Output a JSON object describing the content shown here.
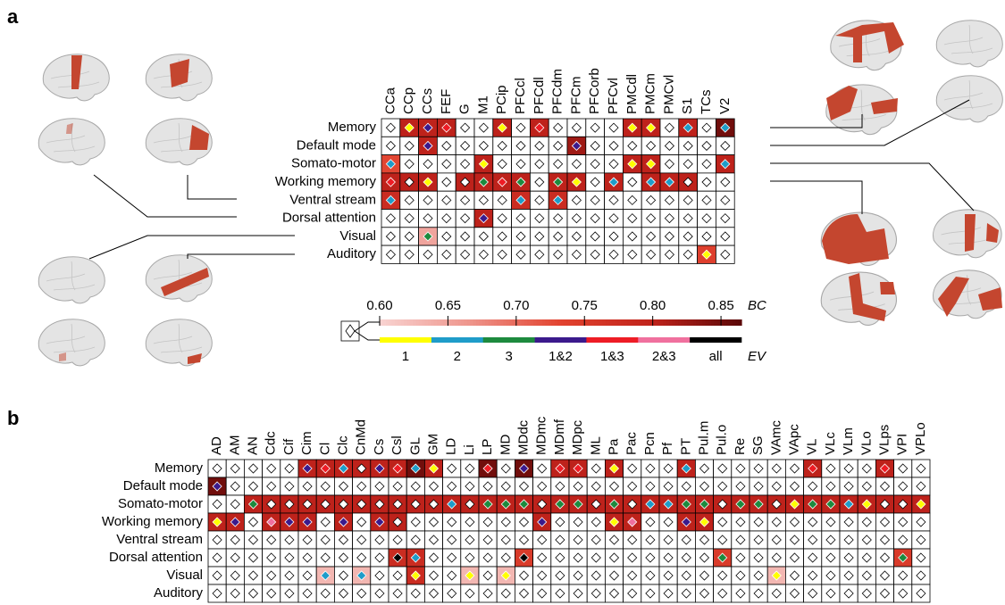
{
  "chart_data": [
    {
      "type": "heatmap",
      "label": "a",
      "x": [
        "CCa",
        "CCp",
        "CCs",
        "FEF",
        "G",
        "M1",
        "PCip",
        "PFCcl",
        "PFCdl",
        "PFCdm",
        "PFCm",
        "PFCorb",
        "PFCvl",
        "PMCdl",
        "PMCm",
        "PMCvl",
        "S1",
        "TCs",
        "V2"
      ],
      "y": [
        "Memory",
        "Default mode",
        "Somato-motor",
        "Working memory",
        "Ventral stream",
        "Dorsal attention",
        "Visual",
        "Auditory"
      ],
      "values": [
        [
          null,
          0.8,
          0.8,
          0.8,
          null,
          null,
          0.8,
          null,
          0.8,
          null,
          null,
          null,
          null,
          0.8,
          0.8,
          null,
          0.8,
          null,
          0.85
        ],
        [
          null,
          null,
          0.8,
          null,
          null,
          null,
          null,
          null,
          null,
          null,
          0.82,
          null,
          null,
          null,
          null,
          null,
          null,
          null,
          null
        ],
        [
          0.73,
          null,
          null,
          null,
          null,
          0.8,
          null,
          null,
          null,
          null,
          null,
          null,
          null,
          0.8,
          0.8,
          null,
          null,
          null,
          0.8
        ],
        [
          0.8,
          0.8,
          0.8,
          null,
          0.8,
          0.8,
          0.8,
          0.8,
          null,
          0.8,
          0.8,
          null,
          0.8,
          null,
          0.8,
          0.8,
          0.8,
          null,
          null
        ],
        [
          0.78,
          null,
          null,
          null,
          null,
          null,
          null,
          0.78,
          null,
          0.78,
          null,
          null,
          null,
          null,
          null,
          null,
          null,
          null,
          null
        ],
        [
          null,
          null,
          null,
          null,
          null,
          0.8,
          null,
          null,
          null,
          null,
          null,
          null,
          null,
          null,
          null,
          null,
          null,
          null,
          null
        ],
        [
          null,
          null,
          0.65,
          null,
          null,
          null,
          null,
          null,
          null,
          null,
          null,
          null,
          null,
          null,
          null,
          null,
          null,
          null,
          null
        ],
        [
          null,
          null,
          null,
          null,
          null,
          null,
          null,
          null,
          null,
          null,
          null,
          null,
          null,
          null,
          null,
          null,
          null,
          0.74,
          null
        ]
      ],
      "ev": [
        [
          null,
          0,
          3,
          4,
          null,
          null,
          0,
          null,
          4,
          null,
          null,
          null,
          null,
          0,
          0,
          null,
          1,
          null,
          1
        ],
        [
          null,
          null,
          3,
          null,
          null,
          null,
          null,
          null,
          null,
          null,
          3,
          null,
          null,
          null,
          null,
          null,
          null,
          null,
          null
        ],
        [
          1,
          null,
          null,
          null,
          null,
          0,
          null,
          null,
          null,
          null,
          null,
          null,
          null,
          0,
          0,
          null,
          null,
          null,
          1
        ],
        [
          4,
          null,
          0,
          null,
          null,
          2,
          4,
          2,
          null,
          2,
          0,
          null,
          1,
          null,
          1,
          1,
          null,
          null,
          null
        ],
        [
          1,
          null,
          null,
          null,
          null,
          null,
          null,
          1,
          null,
          1,
          null,
          null,
          null,
          null,
          null,
          null,
          null,
          null,
          null
        ],
        [
          null,
          null,
          null,
          null,
          null,
          3,
          null,
          null,
          null,
          null,
          null,
          null,
          null,
          null,
          null,
          null,
          null,
          null,
          null
        ],
        [
          null,
          null,
          2,
          null,
          null,
          null,
          null,
          null,
          null,
          null,
          null,
          null,
          null,
          null,
          null,
          null,
          null,
          null,
          null
        ],
        [
          null,
          null,
          null,
          null,
          null,
          null,
          null,
          null,
          null,
          null,
          null,
          null,
          null,
          null,
          null,
          null,
          null,
          0,
          null
        ]
      ],
      "colormap": [
        "#f8d3d1",
        "#ee958c",
        "#e2432f",
        "#c0231b",
        "#5a0808"
      ],
      "bclim": [
        0.6,
        0.865
      ],
      "bc_label": "BC",
      "bc_ticks": [
        {
          "value": 0.6,
          "label": "0.60"
        },
        0.65,
        {
          "value": 0.7,
          "label": "0.70"
        },
        0.75,
        {
          "value": 0.8,
          "label": "0.80"
        },
        0.85
      ],
      "ev_label": "EV",
      "ev_categories": [
        {
          "label": "1",
          "color": "#ffff00"
        },
        {
          "label": "2",
          "color": "#1f9cc9"
        },
        {
          "label": "3",
          "color": "#1d8a3e"
        },
        {
          "label": "1&2",
          "color": "#3b1a8c"
        },
        {
          "label": "1&3",
          "color": "#ee1c25"
        },
        {
          "label": "2&3",
          "color": "#f0709e"
        },
        {
          "label": "all",
          "color": "#000000"
        }
      ]
    },
    {
      "type": "heatmap",
      "label": "b",
      "x": [
        "AD",
        "AM",
        "AN",
        "Cdc",
        "Cif",
        "Cim",
        "Cl",
        "Clc",
        "CnMd",
        "Cs",
        "Csl",
        "GL",
        "GM",
        "LD",
        "Li",
        "LP",
        "MD",
        "MDdc",
        "MDmc",
        "MDmf",
        "MDpc",
        "ML",
        "Pa",
        "Pac",
        "Pcn",
        "Pf",
        "PT",
        "Pul.m",
        "Pul.o",
        "Re",
        "SG",
        "VAmc",
        "VApc",
        "VL",
        "VLc",
        "VLm",
        "VLo",
        "VLps",
        "VPI",
        "VPLo"
      ],
      "y": [
        "Memory",
        "Default mode",
        "Somato-motor",
        "Working memory",
        "Ventral stream",
        "Dorsal attention",
        "Visual",
        "Auditory"
      ],
      "values": [
        [
          null,
          null,
          null,
          null,
          null,
          0.8,
          0.8,
          0.8,
          0.8,
          0.8,
          0.8,
          0.85,
          0.8,
          null,
          null,
          0.85,
          null,
          0.85,
          null,
          0.8,
          0.8,
          null,
          0.8,
          null,
          null,
          null,
          0.8,
          null,
          null,
          null,
          null,
          null,
          null,
          0.8,
          null,
          null,
          null,
          0.8,
          null,
          null
        ],
        [
          0.85,
          null,
          null,
          null,
          null,
          null,
          null,
          null,
          null,
          null,
          null,
          null,
          null,
          null,
          null,
          null,
          null,
          null,
          null,
          null,
          null,
          null,
          null,
          null,
          null,
          null,
          null,
          null,
          null,
          null,
          null,
          null,
          null,
          null,
          null,
          null,
          null,
          null,
          null,
          null
        ],
        [
          null,
          null,
          0.8,
          0.8,
          0.8,
          0.8,
          0.8,
          0.8,
          0.8,
          0.8,
          0.8,
          0.8,
          0.8,
          0.8,
          0.8,
          0.8,
          0.8,
          0.8,
          0.8,
          0.8,
          0.8,
          0.8,
          0.8,
          0.8,
          0.8,
          0.8,
          0.8,
          0.8,
          0.8,
          0.8,
          0.8,
          0.8,
          0.8,
          0.8,
          0.8,
          0.8,
          0.8,
          0.8,
          0.8,
          0.8
        ],
        [
          0.8,
          0.8,
          null,
          0.8,
          0.8,
          0.8,
          null,
          0.8,
          null,
          0.8,
          0.8,
          null,
          null,
          null,
          null,
          null,
          null,
          null,
          0.8,
          null,
          null,
          null,
          0.8,
          0.8,
          null,
          null,
          0.8,
          0.8,
          null,
          null,
          null,
          null,
          null,
          null,
          null,
          null,
          null,
          null,
          null,
          null
        ],
        [
          null,
          null,
          null,
          null,
          null,
          null,
          null,
          null,
          null,
          null,
          null,
          null,
          null,
          null,
          null,
          null,
          null,
          null,
          null,
          null,
          null,
          null,
          null,
          null,
          null,
          null,
          null,
          null,
          null,
          null,
          null,
          null,
          null,
          null,
          null,
          null,
          null,
          null,
          null,
          null
        ],
        [
          null,
          null,
          null,
          null,
          null,
          null,
          null,
          null,
          null,
          null,
          0.78,
          0.78,
          null,
          null,
          null,
          null,
          null,
          0.75,
          null,
          null,
          null,
          null,
          null,
          null,
          null,
          null,
          null,
          null,
          0.75,
          null,
          null,
          null,
          null,
          null,
          null,
          null,
          null,
          null,
          0.75,
          null
        ],
        [
          null,
          null,
          null,
          null,
          null,
          null,
          0.63,
          null,
          0.63,
          null,
          null,
          0.78,
          null,
          null,
          0.63,
          null,
          0.63,
          null,
          null,
          null,
          null,
          null,
          null,
          null,
          null,
          null,
          null,
          null,
          null,
          null,
          null,
          0.63,
          null,
          null,
          null,
          null,
          null,
          null,
          null,
          null
        ],
        [
          null,
          null,
          null,
          null,
          null,
          null,
          null,
          null,
          null,
          null,
          null,
          null,
          null,
          null,
          null,
          null,
          null,
          null,
          null,
          null,
          null,
          null,
          null,
          null,
          null,
          null,
          null,
          null,
          null,
          null,
          null,
          null,
          null,
          null,
          null,
          null,
          null,
          null,
          null,
          null
        ]
      ],
      "ev": [
        [
          null,
          null,
          null,
          null,
          null,
          3,
          4,
          1,
          null,
          3,
          4,
          1,
          0,
          null,
          null,
          4,
          null,
          3,
          null,
          4,
          4,
          null,
          0,
          null,
          null,
          null,
          1,
          null,
          null,
          null,
          null,
          null,
          null,
          4,
          null,
          null,
          null,
          4,
          null,
          null
        ],
        [
          3,
          null,
          null,
          null,
          null,
          null,
          null,
          null,
          null,
          null,
          null,
          null,
          null,
          null,
          null,
          null,
          null,
          null,
          null,
          null,
          null,
          null,
          null,
          null,
          null,
          null,
          null,
          null,
          null,
          null,
          null,
          null,
          null,
          null,
          null,
          null,
          null,
          null,
          null,
          null
        ],
        [
          null,
          null,
          2,
          null,
          null,
          null,
          null,
          null,
          null,
          null,
          null,
          null,
          null,
          1,
          null,
          2,
          2,
          2,
          null,
          2,
          2,
          null,
          2,
          null,
          1,
          1,
          2,
          2,
          null,
          2,
          2,
          null,
          0,
          2,
          2,
          1,
          0,
          null,
          null,
          0
        ],
        [
          0,
          3,
          null,
          5,
          3,
          3,
          null,
          3,
          null,
          3,
          null,
          null,
          null,
          null,
          null,
          null,
          null,
          null,
          3,
          null,
          null,
          null,
          0,
          5,
          null,
          null,
          3,
          0,
          null,
          null,
          null,
          null,
          null,
          null,
          null,
          null,
          null,
          null,
          null,
          null
        ],
        [
          null,
          null,
          null,
          null,
          null,
          null,
          null,
          null,
          null,
          null,
          null,
          null,
          null,
          null,
          null,
          null,
          null,
          null,
          null,
          null,
          null,
          null,
          null,
          null,
          null,
          null,
          null,
          null,
          null,
          null,
          null,
          null,
          null,
          null,
          null,
          null,
          null,
          null,
          null,
          null
        ],
        [
          null,
          null,
          null,
          null,
          null,
          null,
          null,
          null,
          null,
          null,
          6,
          1,
          null,
          null,
          null,
          null,
          null,
          6,
          null,
          null,
          null,
          null,
          null,
          null,
          null,
          null,
          null,
          null,
          2,
          null,
          null,
          null,
          null,
          null,
          null,
          null,
          null,
          null,
          2,
          null
        ],
        [
          null,
          null,
          null,
          null,
          null,
          null,
          1,
          null,
          1,
          null,
          null,
          0,
          null,
          null,
          0,
          null,
          0,
          null,
          null,
          null,
          null,
          null,
          null,
          null,
          null,
          null,
          null,
          null,
          null,
          null,
          null,
          0,
          null,
          null,
          null,
          null,
          null,
          null,
          null,
          null
        ],
        [
          null,
          null,
          null,
          null,
          null,
          null,
          null,
          null,
          null,
          null,
          null,
          null,
          null,
          null,
          null,
          null,
          null,
          null,
          null,
          null,
          null,
          null,
          null,
          null,
          null,
          null,
          null,
          null,
          null,
          null,
          null,
          null,
          null,
          null,
          null,
          null,
          null,
          null,
          null,
          null
        ]
      ]
    }
  ]
}
